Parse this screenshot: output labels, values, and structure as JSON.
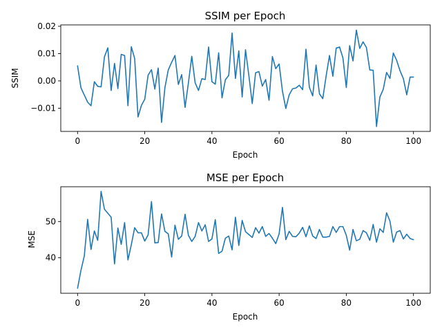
{
  "colors": {
    "series": "#1f77b4"
  },
  "chart_data": [
    {
      "type": "line",
      "title": "SSIM per Epoch",
      "xlabel": "Epoch",
      "ylabel": "SSIM",
      "xlim": [
        -5,
        105
      ],
      "ylim": [
        -0.0185,
        0.0205
      ],
      "xticks": [
        0,
        20,
        40,
        60,
        80,
        100
      ],
      "xtick_labels": [
        "0",
        "20",
        "40",
        "60",
        "80",
        "100"
      ],
      "yticks": [
        -0.01,
        0.0,
        0.01,
        0.02
      ],
      "ytick_labels": [
        "−0.01",
        "0.00",
        "0.01",
        "0.02"
      ],
      "grid": false,
      "series": [
        {
          "x": [
            0,
            1,
            2,
            3,
            4,
            5,
            6,
            7,
            8,
            9,
            10,
            11,
            12,
            13,
            14,
            15,
            16,
            17,
            18,
            19,
            20,
            21,
            22,
            23,
            24,
            25,
            26,
            27,
            28,
            29,
            30,
            31,
            32,
            33,
            34,
            35,
            36,
            37,
            38,
            39,
            40,
            41,
            42,
            43,
            44,
            45,
            46,
            47,
            48,
            49,
            50,
            51,
            52,
            53,
            54,
            55,
            56,
            57,
            58,
            59,
            60,
            61,
            62,
            63,
            64,
            65,
            66,
            67,
            68,
            69,
            70,
            71,
            72,
            73,
            74,
            75,
            76,
            77,
            78,
            79,
            80,
            81,
            82,
            83,
            84,
            85,
            86,
            87,
            88,
            89,
            90,
            91,
            92,
            93,
            94,
            95,
            96,
            97,
            98,
            99,
            100
          ],
          "values": [
            0.0055,
            -0.0025,
            -0.0052,
            -0.0078,
            -0.0091,
            -0.0003,
            -0.002,
            -0.0022,
            0.0088,
            0.0121,
            -0.0035,
            0.0064,
            -0.0028,
            0.0097,
            0.0093,
            -0.0091,
            0.0125,
            0.0082,
            -0.0132,
            -0.009,
            -0.0067,
            0.0021,
            0.0041,
            -0.003,
            0.0047,
            -0.0152,
            -0.0025,
            0.004,
            0.0068,
            0.0093,
            -0.0013,
            0.0023,
            -0.0097,
            -0.0007,
            0.009,
            -0.0007,
            -0.0035,
            0.0008,
            0.0005,
            0.0124,
            -0.0003,
            -0.0012,
            0.0103,
            -0.0062,
            0.0004,
            0.002,
            0.0175,
            0.0009,
            0.011,
            -0.0059,
            0.0114,
            0.0019,
            -0.0083,
            0.003,
            0.0034,
            -0.0019,
            0.0005,
            -0.0071,
            0.0089,
            0.0045,
            0.0062,
            -0.0038,
            -0.0101,
            -0.0051,
            -0.0029,
            -0.0026,
            -0.0016,
            -0.0032,
            0.0116,
            -0.0023,
            -0.0055,
            0.0058,
            -0.0047,
            -0.0065,
            0.0018,
            0.0093,
            0.0017,
            0.012,
            0.0124,
            0.0084,
            -0.0024,
            0.0129,
            0.0073,
            0.0186,
            0.0119,
            0.0143,
            0.0122,
            0.004,
            0.0039,
            -0.0167,
            -0.0059,
            -0.0031,
            0.0031,
            0.0009,
            0.0102,
            0.0075,
            0.0037,
            0.0008,
            -0.0051,
            0.0014,
            0.0014
          ]
        }
      ]
    },
    {
      "type": "line",
      "title": "MSE per Epoch",
      "xlabel": "Epoch",
      "ylabel": "MSE",
      "xlim": [
        -5,
        105
      ],
      "ylim": [
        30.2,
        59.6
      ],
      "xticks": [
        0,
        20,
        40,
        60,
        80,
        100
      ],
      "xtick_labels": [
        "0",
        "20",
        "40",
        "60",
        "80",
        "100"
      ],
      "yticks": [
        40,
        50
      ],
      "ytick_labels": [
        "40",
        "50"
      ],
      "grid": false,
      "series": [
        {
          "x": [
            0,
            1,
            2,
            3,
            4,
            5,
            6,
            7,
            8,
            9,
            10,
            11,
            12,
            13,
            14,
            15,
            16,
            17,
            18,
            19,
            20,
            21,
            22,
            23,
            24,
            25,
            26,
            27,
            28,
            29,
            30,
            31,
            32,
            33,
            34,
            35,
            36,
            37,
            38,
            39,
            40,
            41,
            42,
            43,
            44,
            45,
            46,
            47,
            48,
            49,
            50,
            51,
            52,
            53,
            54,
            55,
            56,
            57,
            58,
            59,
            60,
            61,
            62,
            63,
            64,
            65,
            66,
            67,
            68,
            69,
            70,
            71,
            72,
            73,
            74,
            75,
            76,
            77,
            78,
            79,
            80,
            81,
            82,
            83,
            84,
            85,
            86,
            87,
            88,
            89,
            90,
            91,
            92,
            93,
            94,
            95,
            96,
            97,
            98,
            99,
            100
          ],
          "values": [
            31.6,
            36.5,
            40.5,
            50.6,
            42.3,
            47.4,
            44.8,
            58.3,
            53.4,
            52.3,
            51.2,
            38.3,
            48.2,
            43.7,
            49.7,
            39.4,
            43.6,
            48.3,
            46.9,
            46.9,
            44.6,
            46.3,
            55.5,
            44.1,
            44.2,
            52.1,
            47.3,
            46.6,
            40.2,
            49.0,
            45.1,
            46.0,
            52.0,
            46.2,
            44.5,
            45.9,
            49.7,
            47.4,
            49.1,
            44.5,
            45.2,
            50.5,
            41.2,
            41.8,
            45.4,
            46.0,
            42.2,
            51.2,
            43.4,
            50.3,
            47.2,
            46.4,
            45.6,
            48.3,
            46.8,
            48.6,
            45.9,
            46.7,
            45.4,
            43.9,
            46.6,
            53.9,
            45.0,
            47.3,
            45.9,
            45.8,
            46.8,
            48.4,
            45.8,
            48.8,
            46.0,
            45.3,
            47.8,
            45.7,
            45.7,
            45.9,
            48.6,
            47.0,
            48.6,
            48.6,
            46.2,
            42.1,
            47.8,
            44.7,
            45.1,
            47.5,
            46.9,
            44.8,
            49.2,
            44.3,
            48.0,
            47.0,
            52.4,
            50.1,
            44.3,
            47.1,
            47.5,
            45.2,
            46.5,
            45.3,
            45.0
          ]
        }
      ]
    }
  ]
}
